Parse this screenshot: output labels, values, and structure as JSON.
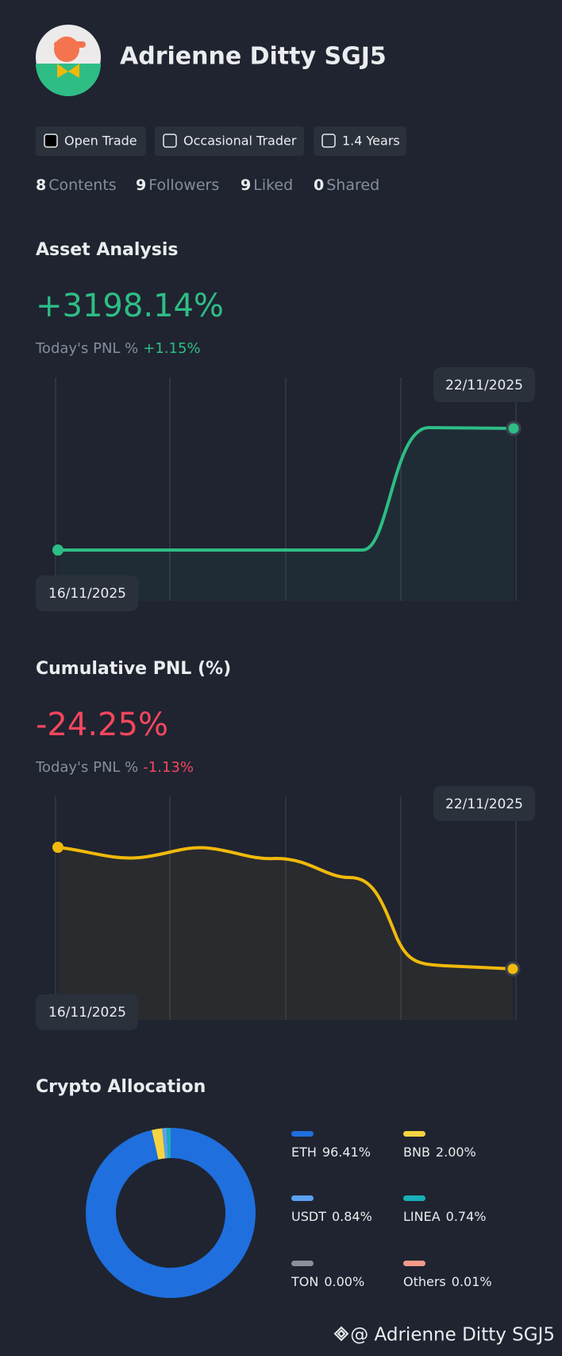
{
  "profile": {
    "name": "Adrienne Ditty SGJ5",
    "tags": [
      "Open Trade",
      "Occasional Trader",
      "1.4 Years"
    ],
    "stats": [
      {
        "value": 8,
        "label": "Contents"
      },
      {
        "value": 9,
        "label": "Followers"
      },
      {
        "value": 9,
        "label": "Liked"
      },
      {
        "value": 0,
        "label": "Shared"
      }
    ]
  },
  "asset_analysis": {
    "title": "Asset Analysis",
    "value": "+3198.14%",
    "today_label": "Today's PNL %",
    "today_value": "+1.15%",
    "start_date": "16/11/2025",
    "end_date": "22/11/2025"
  },
  "cumulative_pnl": {
    "title": "Cumulative PNL (%)",
    "value": "-24.25%",
    "today_label": "Today's PNL %",
    "today_value": "-1.13%",
    "start_date": "16/11/2025",
    "end_date": "22/11/2025"
  },
  "allocation": {
    "title": "Crypto Allocation",
    "items": [
      {
        "name": "ETH",
        "value": 96.41,
        "label": "96.41%",
        "color": "#1f6fde"
      },
      {
        "name": "BNB",
        "value": 2,
        "label": "2.00%",
        "color": "#f5d442"
      },
      {
        "name": "USDT",
        "value": 0.84,
        "label": "0.84%",
        "color": "#5aa0f0"
      },
      {
        "name": "LINEA",
        "value": 0.74,
        "label": "0.74%",
        "color": "#18b0b8"
      },
      {
        "name": "TON",
        "value": 0,
        "label": "0.00%",
        "color": "#8a8f99"
      },
      {
        "name": "Others",
        "value": 0.01,
        "label": "0.01%",
        "color": "#f59a8a"
      }
    ]
  },
  "watermark": "@ Adrienne Ditty SGJ5"
}
